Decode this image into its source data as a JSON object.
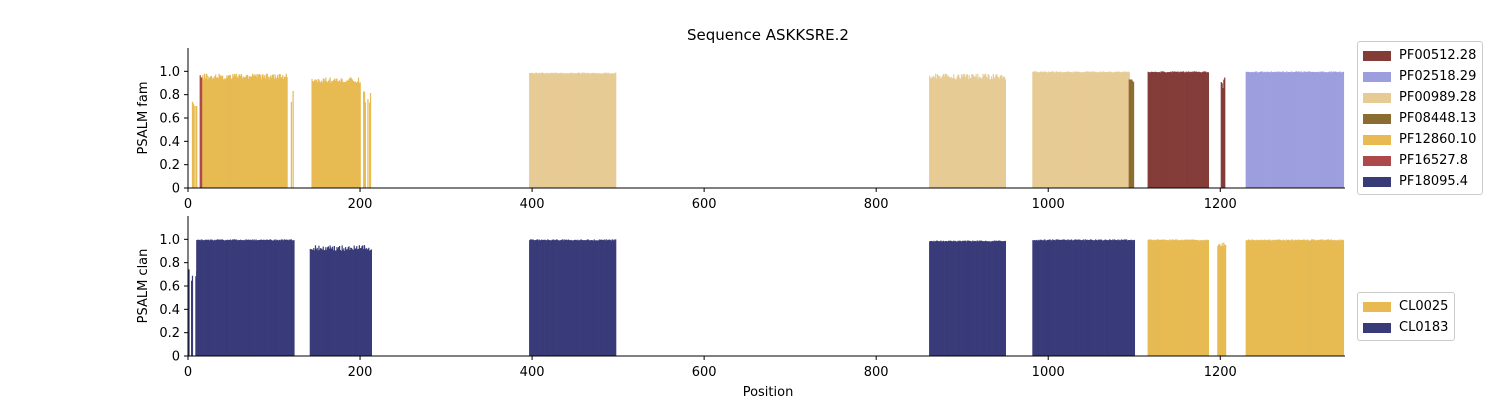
{
  "chart_data": {
    "title": "Sequence ASKKSRE.2",
    "xlabel": "Position",
    "x_ticks": [
      0,
      200,
      400,
      600,
      800,
      1000,
      1200
    ],
    "xlim": [
      0,
      1345
    ],
    "y_ticks": [
      0,
      0.2,
      0.4,
      0.6,
      0.8,
      1.0
    ],
    "y_tick_labels": [
      "0",
      "0.2",
      "0.4",
      "0.6",
      "0.8",
      "1.0"
    ],
    "ylim": [
      0,
      1.2
    ],
    "grid": false,
    "panels": [
      {
        "type": "bar",
        "ylabel": "PSALM fam",
        "legend_placement": "right, outside plot",
        "legend": [
          {
            "name": "PF00512.28",
            "color": "#843c39"
          },
          {
            "name": "PF02518.29",
            "color": "#9c9ede"
          },
          {
            "name": "PF00989.28",
            "color": "#e7cb94"
          },
          {
            "name": "PF08448.13",
            "color": "#8c6d31"
          },
          {
            "name": "PF12860.10",
            "color": "#e7ba52"
          },
          {
            "name": "PF16527.8",
            "color": "#ad494a"
          },
          {
            "name": "PF18095.4",
            "color": "#393b79"
          }
        ],
        "segments": [
          {
            "family": "PF12860.10",
            "start": 1,
            "end": 10,
            "level": 0.75,
            "sparse": true
          },
          {
            "family": "PF16527.8",
            "start": 14,
            "end": 16,
            "level": 0.98
          },
          {
            "family": "PF12860.10",
            "start": 17,
            "end": 115,
            "level": 0.98
          },
          {
            "family": "PF12860.10",
            "start": 116,
            "end": 123,
            "level": 0.85,
            "sparse": true
          },
          {
            "family": "PF12860.10",
            "start": 144,
            "end": 200,
            "level": 0.95
          },
          {
            "family": "PF12860.10",
            "start": 201,
            "end": 213,
            "level": 0.85,
            "sparse": true
          },
          {
            "family": "PF00989.28",
            "start": 397,
            "end": 497,
            "level": 0.99
          },
          {
            "family": "PF00989.28",
            "start": 862,
            "end": 950,
            "level": 0.98
          },
          {
            "family": "PF00989.28",
            "start": 982,
            "end": 1094,
            "level": 1.0
          },
          {
            "family": "PF08448.13",
            "start": 1094,
            "end": 1099,
            "level": 0.95
          },
          {
            "family": "PF00512.28",
            "start": 1116,
            "end": 1186,
            "level": 1.0
          },
          {
            "family": "PF00512.28",
            "start": 1197,
            "end": 1206,
            "level": 0.97,
            "sparse": true
          },
          {
            "family": "PF02518.29",
            "start": 1230,
            "end": 1343,
            "level": 1.0
          }
        ]
      },
      {
        "type": "bar",
        "ylabel": "PSALM clan",
        "legend_placement": "right, outside plot",
        "legend": [
          {
            "name": "CL0025",
            "color": "#e7ba52"
          },
          {
            "name": "CL0183",
            "color": "#393b79"
          }
        ],
        "segments": [
          {
            "clan": "CL0183",
            "start": 1,
            "end": 10,
            "level": 0.75,
            "sparse": true
          },
          {
            "clan": "CL0183",
            "start": 10,
            "end": 123,
            "level": 1.0
          },
          {
            "clan": "CL0183",
            "start": 142,
            "end": 213,
            "level": 0.95
          },
          {
            "clan": "CL0183",
            "start": 397,
            "end": 497,
            "level": 1.0
          },
          {
            "clan": "CL0183",
            "start": 862,
            "end": 950,
            "level": 0.99
          },
          {
            "clan": "CL0183",
            "start": 982,
            "end": 1100,
            "level": 1.0
          },
          {
            "clan": "CL0025",
            "start": 1116,
            "end": 1186,
            "level": 1.0
          },
          {
            "clan": "CL0025",
            "start": 1197,
            "end": 1206,
            "level": 0.98
          },
          {
            "clan": "CL0025",
            "start": 1230,
            "end": 1343,
            "level": 1.0
          }
        ]
      }
    ]
  }
}
